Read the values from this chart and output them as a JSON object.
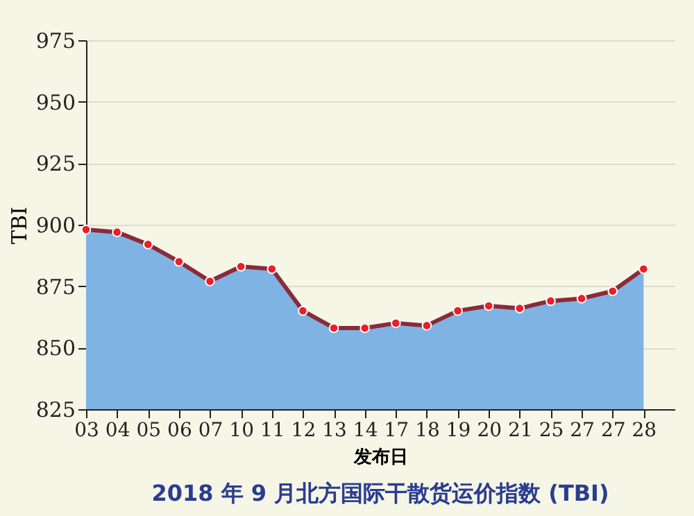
{
  "chart_data": {
    "type": "area",
    "title": "2018 年 9 月北方国际干散货运价指数 (TBI)",
    "xlabel": "发布日",
    "ylabel": "TBI",
    "categories": [
      "03",
      "04",
      "05",
      "06",
      "07",
      "10",
      "11",
      "12",
      "13",
      "14",
      "17",
      "18",
      "19",
      "20",
      "21",
      "25",
      "27",
      "27",
      "28"
    ],
    "series": [
      {
        "color": "#7fb3e3",
        "values": [
          898,
          897,
          892,
          885,
          877,
          883,
          882,
          865,
          858,
          858,
          860,
          859,
          865,
          867,
          866,
          869,
          870,
          873,
          882
        ]
      },
      {
        "type": "line",
        "color": "#8b2a3a",
        "line_style": "solid",
        "values": [
          898,
          897,
          892,
          885,
          877,
          883,
          882,
          865,
          858,
          858,
          860,
          859,
          865,
          867,
          866,
          869,
          870,
          873,
          882
        ]
      },
      {
        "type": "scatter",
        "color": "#e8202a",
        "marker": "circle",
        "values": [
          898,
          897,
          892,
          885,
          877,
          883,
          882,
          865,
          858,
          858,
          860,
          859,
          865,
          867,
          866,
          869,
          870,
          873,
          882
        ]
      }
    ],
    "ylim": [
      825,
      975
    ],
    "yticks": [
      825,
      850,
      875,
      900,
      925,
      950,
      975
    ],
    "grid": "y"
  }
}
